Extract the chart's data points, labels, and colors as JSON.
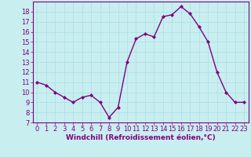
{
  "x": [
    0,
    1,
    2,
    3,
    4,
    5,
    6,
    7,
    8,
    9,
    10,
    11,
    12,
    13,
    14,
    15,
    16,
    17,
    18,
    19,
    20,
    21,
    22,
    23
  ],
  "y": [
    11,
    10.7,
    10,
    9.5,
    9,
    9.5,
    9.7,
    9,
    7.5,
    8.5,
    13,
    15.3,
    15.8,
    15.5,
    17.5,
    17.7,
    18.5,
    17.8,
    16.5,
    15,
    12,
    10,
    9,
    9
  ],
  "line_color": "#800080",
  "marker": "D",
  "marker_size": 2.0,
  "linewidth": 1.0,
  "xlabel": "Windchill (Refroidissement éolien,°C)",
  "xlabel_fontsize": 6.5,
  "xlim": [
    -0.5,
    23.5
  ],
  "ylim": [
    7,
    19
  ],
  "yticks": [
    7,
    8,
    9,
    10,
    11,
    12,
    13,
    14,
    15,
    16,
    17,
    18
  ],
  "xticks": [
    0,
    1,
    2,
    3,
    4,
    5,
    6,
    7,
    8,
    9,
    10,
    11,
    12,
    13,
    14,
    15,
    16,
    17,
    18,
    19,
    20,
    21,
    22,
    23
  ],
  "grid_color": "#aadde6",
  "background_color": "#c8eef0",
  "tick_color": "#800080",
  "tick_fontsize": 6.0,
  "spine_color": "#800080"
}
